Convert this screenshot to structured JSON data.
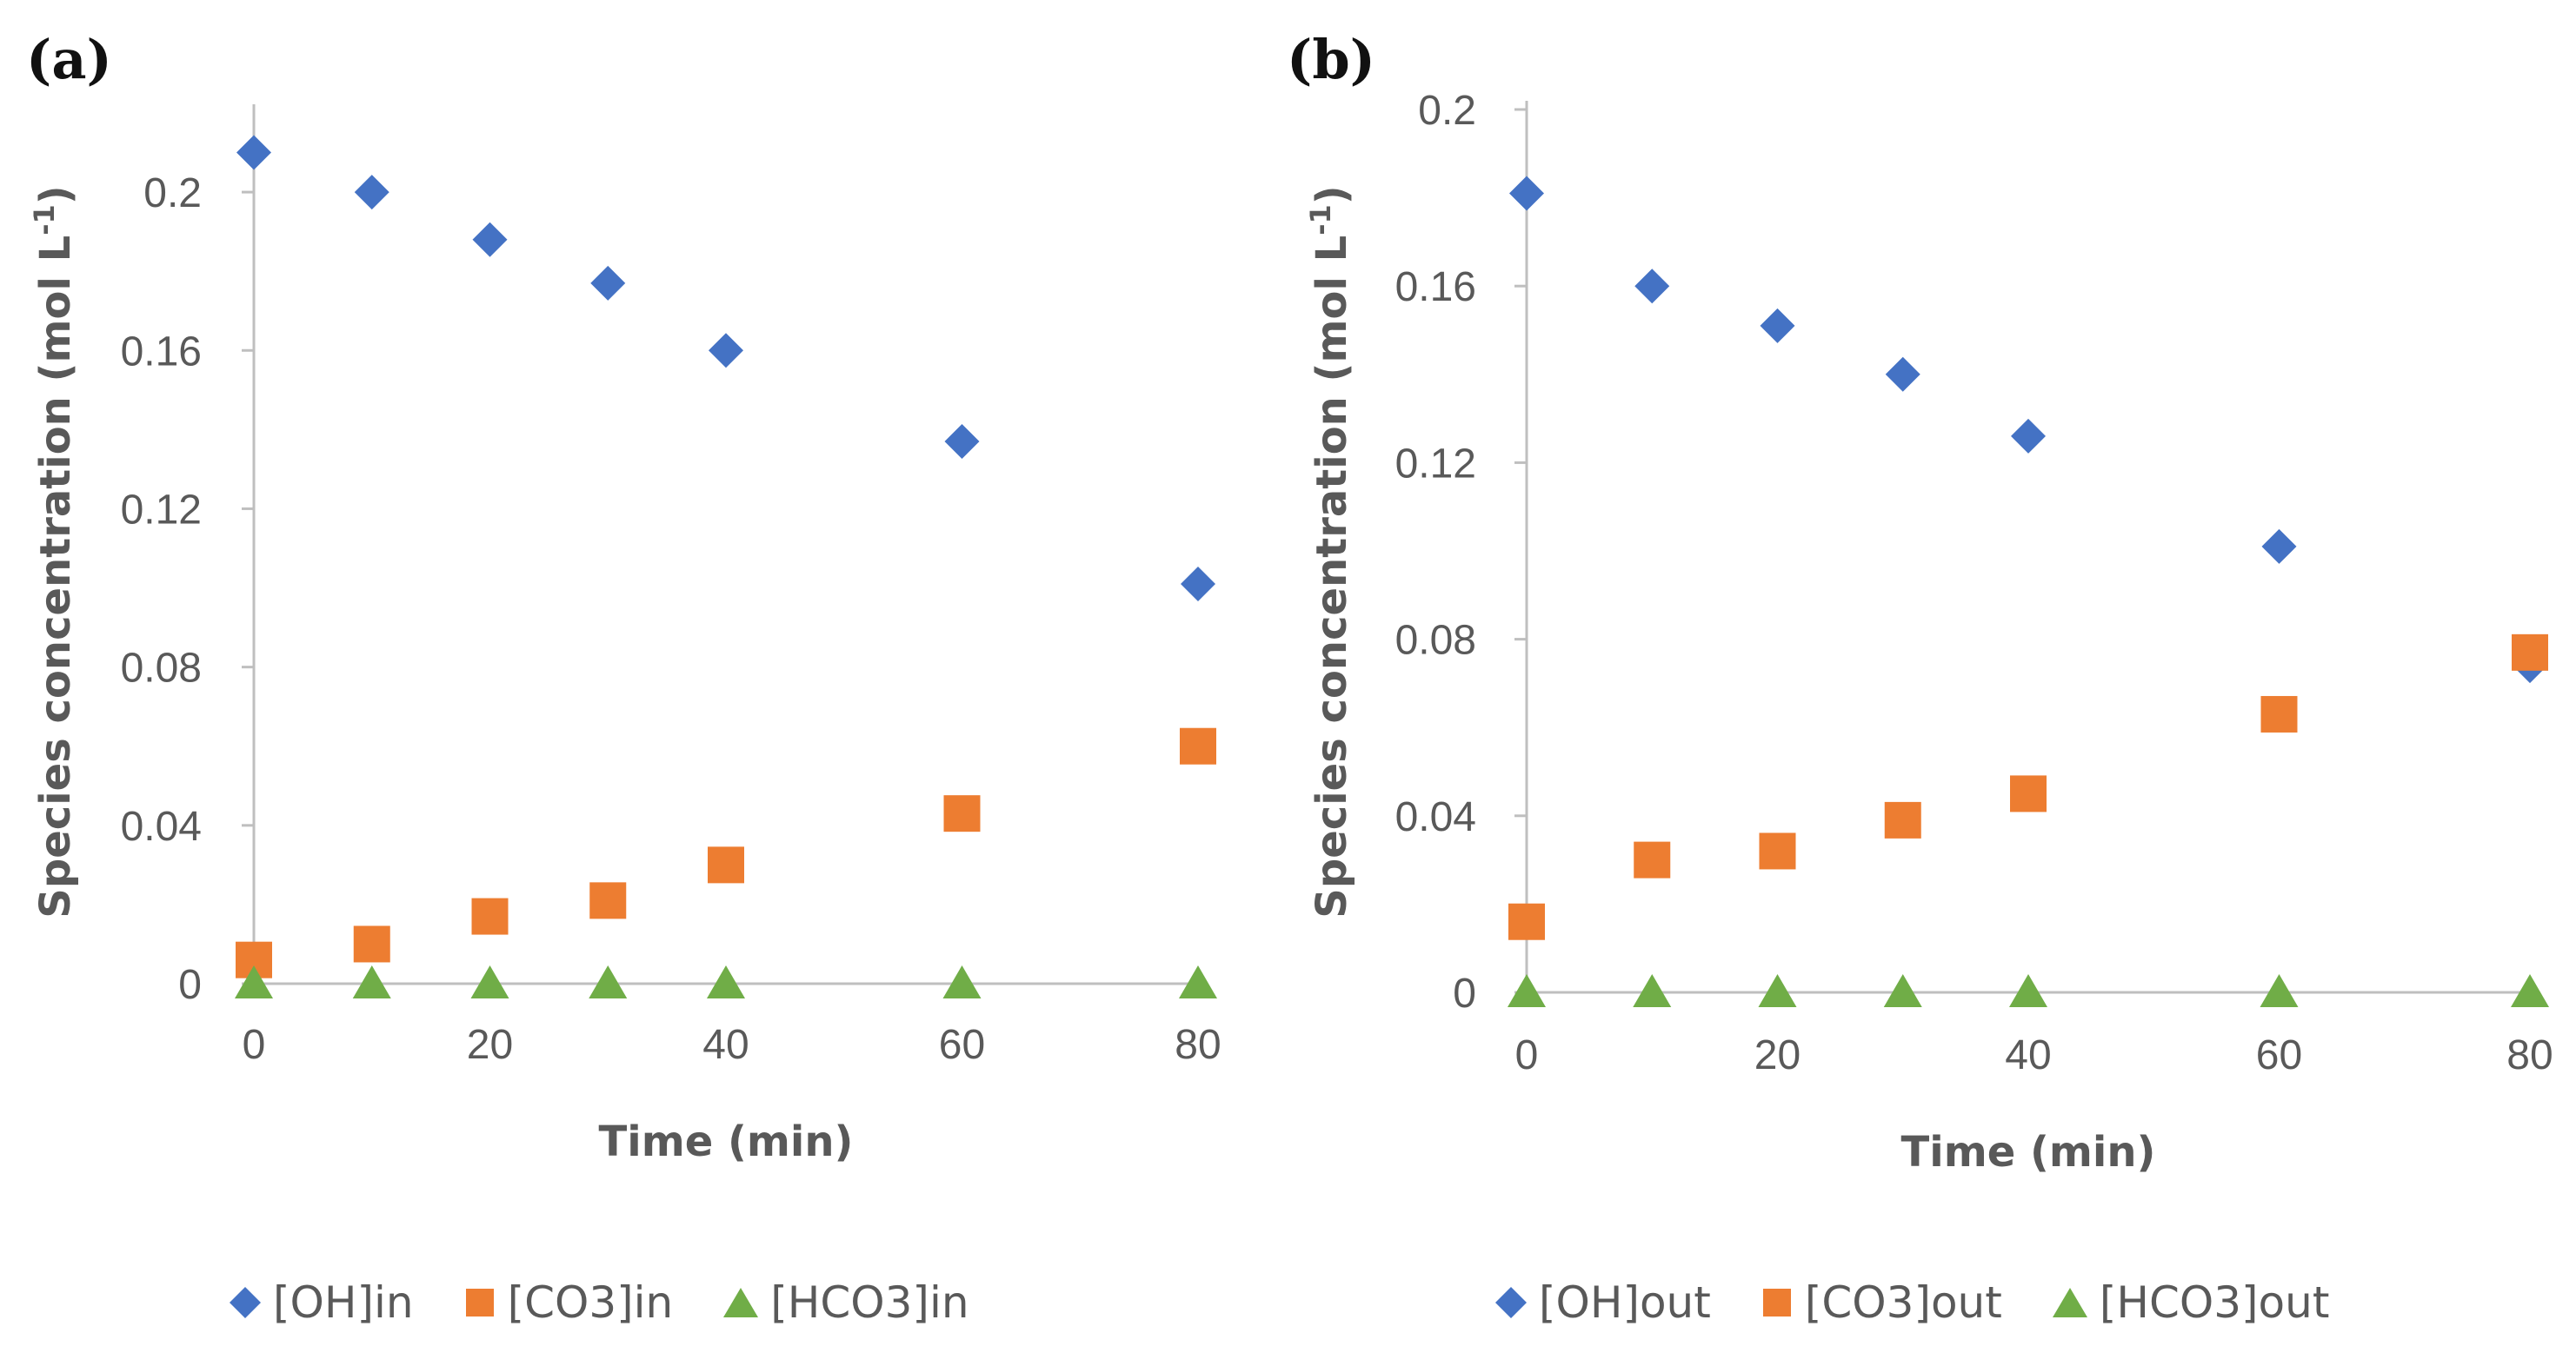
{
  "chart_data": [
    {
      "panel_label": "(a)",
      "type": "scatter",
      "xlabel": "Time (min)",
      "ylabel_main": "Species concentration (mol L",
      "ylabel_sup": "-1",
      "ylabel_close": ")",
      "xlim": [
        0,
        80
      ],
      "ylim": [
        0,
        0.22
      ],
      "xticks": [
        0,
        20,
        40,
        60,
        80
      ],
      "xtick_labels": [
        "0",
        "20",
        "40",
        "60",
        "80"
      ],
      "yticks": [
        0,
        0.04,
        0.08,
        0.12,
        0.16,
        0.2
      ],
      "ytick_labels": [
        "0",
        "0.04",
        "0.08",
        "0.12",
        "0.16",
        "0.2"
      ],
      "x": [
        0,
        10,
        20,
        30,
        40,
        60,
        80
      ],
      "series": [
        {
          "name": "[OH]in",
          "marker": "diamond",
          "color": "#4472C4",
          "values": [
            0.21,
            0.2,
            0.188,
            0.177,
            0.16,
            0.137,
            0.101
          ]
        },
        {
          "name": "[CO3]in",
          "marker": "square",
          "color": "#ED7D31",
          "values": [
            0.006,
            0.01,
            0.017,
            0.021,
            0.03,
            0.043,
            0.06
          ]
        },
        {
          "name": "[HCO3]in",
          "marker": "triangle",
          "color": "#70AD47",
          "values": [
            0,
            0,
            0,
            0,
            0,
            0,
            0
          ]
        }
      ]
    },
    {
      "panel_label": "(b)",
      "type": "scatter",
      "xlabel": "Time (min)",
      "ylabel_main": "Species concentration (mol L",
      "ylabel_sup": "-1",
      "ylabel_close": ")",
      "xlim": [
        0,
        80
      ],
      "ylim": [
        0,
        0.2
      ],
      "xticks": [
        0,
        20,
        40,
        60,
        80
      ],
      "xtick_labels": [
        "0",
        "20",
        "40",
        "60",
        "80"
      ],
      "yticks": [
        0,
        0.04,
        0.08,
        0.12,
        0.16,
        0.2
      ],
      "ytick_labels": [
        "0",
        "0.04",
        "0.08",
        "0.12",
        "0.16",
        "0.2"
      ],
      "x": [
        0,
        10,
        20,
        30,
        40,
        60,
        80
      ],
      "series": [
        {
          "name": "[OH]out",
          "marker": "diamond",
          "color": "#4472C4",
          "values": [
            0.181,
            0.16,
            0.151,
            0.14,
            0.126,
            0.101,
            0.074
          ]
        },
        {
          "name": "[CO3]out",
          "marker": "square",
          "color": "#ED7D31",
          "values": [
            0.016,
            0.03,
            0.032,
            0.039,
            0.045,
            0.063,
            0.077
          ]
        },
        {
          "name": "[HCO3]out",
          "marker": "triangle",
          "color": "#70AD47",
          "values": [
            0,
            0,
            0,
            0,
            0,
            0,
            0
          ]
        }
      ]
    }
  ]
}
